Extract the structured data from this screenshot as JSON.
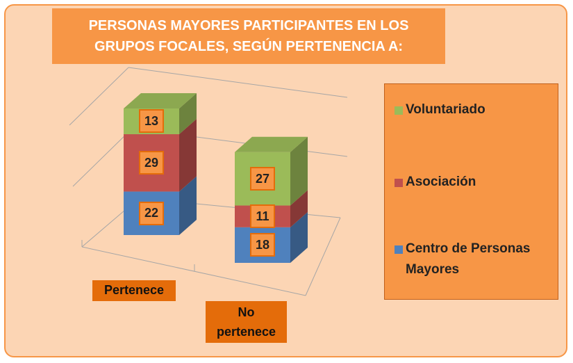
{
  "chart_data": {
    "type": "bar",
    "stacked": true,
    "three_d": true,
    "title": "PERSONAS MAYORES PARTICIPANTES EN LOS GRUPOS FOCALES, SEGÚN PERTENENCIA A:",
    "categories": [
      "Pertenece",
      "No pertenece"
    ],
    "series": [
      {
        "name": "Centro de Personas Mayores",
        "color": "#4f81bd",
        "values": [
          22,
          18
        ]
      },
      {
        "name": "Asociación",
        "color": "#c0504d",
        "values": [
          29,
          11
        ]
      },
      {
        "name": "Voluntariado",
        "color": "#9bbb59",
        "values": [
          13,
          27
        ]
      }
    ]
  }
}
